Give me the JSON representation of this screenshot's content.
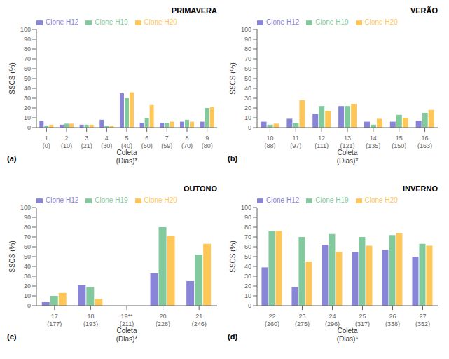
{
  "chart_data": [
    {
      "type": "bar",
      "title": "PRIMAVERA",
      "annotations": [
        "(a)"
      ],
      "categories": [
        "1\n(0)",
        "2\n(10)",
        "3\n(21)",
        "4\n(30)",
        "5\n(40)",
        "6\n(50)",
        "7\n(59)",
        "8\n(70)",
        "9\n(80)"
      ],
      "series": [
        {
          "name": "Clone H12",
          "color": "#8884d8",
          "values": [
            7,
            3,
            3,
            8,
            35,
            5,
            5,
            6,
            6
          ]
        },
        {
          "name": "Clone H19",
          "color": "#82ca9d",
          "values": [
            2,
            4,
            3,
            2,
            30,
            10,
            5,
            8,
            20
          ]
        },
        {
          "name": "Clone H20",
          "color": "#ffc658",
          "values": [
            3,
            4,
            3,
            2,
            36,
            23,
            6,
            6,
            21
          ]
        }
      ],
      "xlabel": "Coleta\n(Dias)*",
      "ylabel": "SSCS (%)",
      "ylim": [
        0,
        100
      ],
      "yticks": [
        0,
        10,
        20,
        30,
        40,
        50,
        60,
        70,
        80,
        90,
        100
      ],
      "legend": "upper left",
      "grid": false
    },
    {
      "type": "bar",
      "title": "VERÃO",
      "annotations": [
        "(b)"
      ],
      "categories": [
        "10\n(88)",
        "11\n(97)",
        "12\n(111)",
        "13\n(121)",
        "14\n(135)",
        "15\n(150)",
        "16\n(163)"
      ],
      "series": [
        {
          "name": "Clone H12",
          "color": "#8884d8",
          "values": [
            6,
            9,
            14,
            22,
            6,
            6,
            7
          ]
        },
        {
          "name": "Clone H19",
          "color": "#82ca9d",
          "values": [
            3,
            5,
            22,
            22,
            3,
            13,
            15
          ]
        },
        {
          "name": "Clone H20",
          "color": "#ffc658",
          "values": [
            4,
            28,
            17,
            24,
            9,
            10,
            18
          ]
        }
      ],
      "xlabel": "Coleta\n(Dias)*",
      "ylabel": "SSCS (%)",
      "ylim": [
        0,
        100
      ],
      "yticks": [
        0,
        10,
        20,
        30,
        40,
        50,
        60,
        70,
        80,
        90,
        100
      ],
      "legend": "upper left",
      "grid": false
    },
    {
      "type": "bar",
      "title": "OUTONO",
      "annotations": [
        "(c)"
      ],
      "categories": [
        "17\n(177)",
        "18\n(193)",
        "19**\n(211)",
        "20\n(228)",
        "21\n(246)"
      ],
      "series": [
        {
          "name": "Clone H12",
          "color": "#8884d8",
          "values": [
            4,
            21,
            0,
            33,
            25
          ]
        },
        {
          "name": "Clone H19",
          "color": "#82ca9d",
          "values": [
            10,
            19,
            0,
            80,
            52
          ]
        },
        {
          "name": "Clone H20",
          "color": "#ffc658",
          "values": [
            13,
            7,
            0,
            71,
            63
          ]
        }
      ],
      "xlabel": "Coleta\n(Dias)*",
      "ylabel": "SSCS (%)",
      "ylim": [
        0,
        100
      ],
      "yticks": [
        0,
        10,
        20,
        30,
        40,
        50,
        60,
        70,
        80,
        90,
        100
      ],
      "legend": "upper left",
      "grid": false
    },
    {
      "type": "bar",
      "title": "INVERNO",
      "annotations": [
        "(d)"
      ],
      "categories": [
        "22\n(260)",
        "23\n(275)",
        "24\n(296)",
        "25\n(317)",
        "26\n(338)",
        "27\n(352)"
      ],
      "series": [
        {
          "name": "Clone H12",
          "color": "#8884d8",
          "values": [
            39,
            19,
            62,
            55,
            57,
            50
          ]
        },
        {
          "name": "Clone H19",
          "color": "#82ca9d",
          "values": [
            76,
            70,
            73,
            70,
            72,
            63
          ]
        },
        {
          "name": "Clone H20",
          "color": "#ffc658",
          "values": [
            76,
            45,
            55,
            61,
            74,
            61
          ]
        }
      ],
      "xlabel": "Coleta\n(Dias)*",
      "ylabel": "SSCS (%)",
      "ylim": [
        0,
        100
      ],
      "yticks": [
        0,
        10,
        20,
        30,
        40,
        50,
        60,
        70,
        80,
        90,
        100
      ],
      "legend": "upper left",
      "grid": false
    }
  ]
}
